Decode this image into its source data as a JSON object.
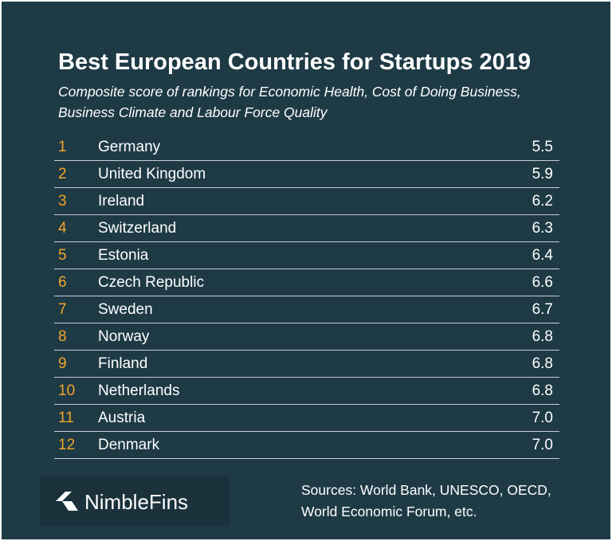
{
  "chart_data": {
    "type": "table",
    "title": "Best European Countries for Startups 2019",
    "subtitle": "Composite score of rankings for Economic Health, Cost of Doing Business, Business Climate and Labour Force Quality",
    "rows": [
      {
        "rank": "1",
        "country": "Germany",
        "score": "5.5"
      },
      {
        "rank": "2",
        "country": "United Kingdom",
        "score": "5.9"
      },
      {
        "rank": "3",
        "country": "Ireland",
        "score": "6.2"
      },
      {
        "rank": "4",
        "country": "Switzerland",
        "score": "6.3"
      },
      {
        "rank": "5",
        "country": "Estonia",
        "score": "6.4"
      },
      {
        "rank": "6",
        "country": "Czech Republic",
        "score": "6.6"
      },
      {
        "rank": "7",
        "country": "Sweden",
        "score": "6.7"
      },
      {
        "rank": "8",
        "country": "Norway",
        "score": "6.8"
      },
      {
        "rank": "9",
        "country": "Finland",
        "score": "6.8"
      },
      {
        "rank": "10",
        "country": "Netherlands",
        "score": "6.8"
      },
      {
        "rank": "11",
        "country": "Austria",
        "score": "7.0"
      },
      {
        "rank": "12",
        "country": "Denmark",
        "score": "7.0"
      }
    ]
  },
  "colors": {
    "background": "#1e3a45",
    "rank": "#f0a52a",
    "text": "#ffffff",
    "rule": "#c8cfd3"
  },
  "logo": {
    "icon": "nimblefins-arrow-icon",
    "text": "NimbleFins"
  },
  "sources": {
    "line1": "Sources: World Bank, UNESCO, OECD,",
    "line2": "World Economic Forum,  etc."
  }
}
